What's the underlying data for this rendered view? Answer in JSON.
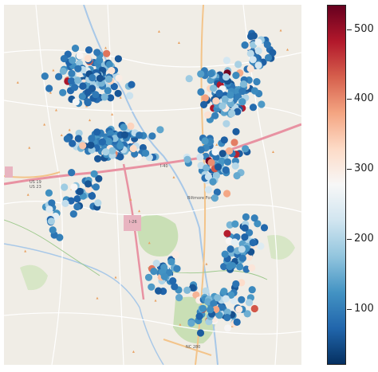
{
  "map": {
    "road_labels": [
      "I-40",
      "US 19",
      "US 23",
      "NC 280",
      "I-26",
      "Biltmore Forest"
    ],
    "point_color_scale": "RdBu_r"
  },
  "colorbar": {
    "min": 20,
    "max": 535,
    "ticks": [
      {
        "value": 100,
        "label": "100"
      },
      {
        "value": 200,
        "label": "200"
      },
      {
        "value": 300,
        "label": "300"
      },
      {
        "value": 400,
        "label": "400"
      },
      {
        "value": 500,
        "label": "500"
      }
    ],
    "colors": [
      "#053061",
      "#2166ac",
      "#4393c3",
      "#92c5de",
      "#d1e5f0",
      "#f7f7f7",
      "#fddbc7",
      "#f4a582",
      "#d6604d",
      "#b2182b",
      "#67001f"
    ]
  }
}
